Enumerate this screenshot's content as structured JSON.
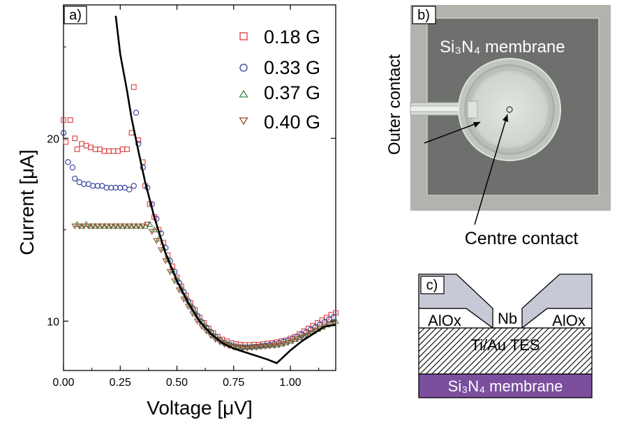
{
  "panel_a": {
    "label": "a)",
    "xlabel": "Voltage [μV]",
    "ylabel": "Current [μA]",
    "legend": [
      {
        "label": "0.18 G",
        "marker": "square",
        "color": "#d93a3a"
      },
      {
        "label": "0.33 G",
        "marker": "circle",
        "color": "#2c3a9a"
      },
      {
        "label": "0.37 G",
        "marker": "triangle-up",
        "color": "#3f8a4f"
      },
      {
        "label": "0.40 G",
        "marker": "triangle-down",
        "color": "#9a4a2c"
      }
    ]
  },
  "chart_data": {
    "type": "scatter",
    "xlim": [
      0.0,
      1.2
    ],
    "ylim": [
      7.3,
      27.3
    ],
    "xticks": [
      {
        "v": 0.0,
        "label": "0.00"
      },
      {
        "v": 0.25,
        "label": "0.25"
      },
      {
        "v": 0.5,
        "label": "0.50"
      },
      {
        "v": 0.75,
        "label": "0.75"
      },
      {
        "v": 1.0,
        "label": "1.00"
      }
    ],
    "yticks": [
      {
        "v": 10,
        "label": "10"
      },
      {
        "v": 20,
        "label": "20"
      }
    ],
    "legend_position": "top-right",
    "series": [
      {
        "name": "0.18 G",
        "marker": "square",
        "color": "#d93a3a",
        "points": [
          [
            0.0,
            21.0
          ],
          [
            0.01,
            19.8
          ],
          [
            0.03,
            21.0
          ],
          [
            0.05,
            20.0
          ],
          [
            0.06,
            19.4
          ],
          [
            0.08,
            19.7
          ],
          [
            0.1,
            19.6
          ],
          [
            0.12,
            19.5
          ],
          [
            0.14,
            19.4
          ],
          [
            0.16,
            19.4
          ],
          [
            0.18,
            19.3
          ],
          [
            0.2,
            19.3
          ],
          [
            0.22,
            19.3
          ],
          [
            0.24,
            19.3
          ],
          [
            0.26,
            19.4
          ],
          [
            0.28,
            19.4
          ],
          [
            0.3,
            20.3
          ],
          [
            0.31,
            22.8
          ],
          [
            0.33,
            19.9
          ],
          [
            0.35,
            18.7
          ],
          [
            0.36,
            17.4
          ],
          [
            0.38,
            16.4
          ],
          [
            0.4,
            15.7
          ],
          [
            0.42,
            15.0
          ],
          [
            0.44,
            14.3
          ],
          [
            0.46,
            13.6
          ],
          [
            0.48,
            13.0
          ],
          [
            0.5,
            12.4
          ],
          [
            0.52,
            11.9
          ],
          [
            0.54,
            11.4
          ],
          [
            0.56,
            11.0
          ],
          [
            0.58,
            10.6
          ],
          [
            0.6,
            10.2
          ],
          [
            0.62,
            9.9
          ],
          [
            0.64,
            9.6
          ],
          [
            0.66,
            9.35
          ],
          [
            0.68,
            9.15
          ],
          [
            0.7,
            9.0
          ],
          [
            0.72,
            8.9
          ],
          [
            0.74,
            8.8
          ],
          [
            0.76,
            8.75
          ],
          [
            0.78,
            8.72
          ],
          [
            0.8,
            8.7
          ],
          [
            0.82,
            8.7
          ],
          [
            0.84,
            8.72
          ],
          [
            0.86,
            8.72
          ],
          [
            0.88,
            8.75
          ],
          [
            0.9,
            8.78
          ],
          [
            0.92,
            8.8
          ],
          [
            0.94,
            8.85
          ],
          [
            0.96,
            8.9
          ],
          [
            0.98,
            8.95
          ],
          [
            1.0,
            9.05
          ],
          [
            1.02,
            9.15
          ],
          [
            1.04,
            9.3
          ],
          [
            1.06,
            9.45
          ],
          [
            1.08,
            9.6
          ],
          [
            1.1,
            9.75
          ],
          [
            1.12,
            9.9
          ],
          [
            1.14,
            10.05
          ],
          [
            1.16,
            10.2
          ],
          [
            1.18,
            10.35
          ],
          [
            1.2,
            10.45
          ]
        ]
      },
      {
        "name": "0.33 G",
        "marker": "circle",
        "color": "#2c3a9a",
        "points": [
          [
            0.0,
            20.3
          ],
          [
            0.02,
            18.7
          ],
          [
            0.04,
            18.4
          ],
          [
            0.05,
            17.8
          ],
          [
            0.07,
            17.6
          ],
          [
            0.09,
            17.5
          ],
          [
            0.11,
            17.5
          ],
          [
            0.13,
            17.4
          ],
          [
            0.15,
            17.4
          ],
          [
            0.17,
            17.4
          ],
          [
            0.19,
            17.3
          ],
          [
            0.21,
            17.3
          ],
          [
            0.23,
            17.3
          ],
          [
            0.25,
            17.3
          ],
          [
            0.27,
            17.3
          ],
          [
            0.29,
            17.2
          ],
          [
            0.31,
            17.4
          ],
          [
            0.32,
            21.4
          ],
          [
            0.33,
            19.7
          ],
          [
            0.35,
            18.4
          ],
          [
            0.37,
            17.3
          ],
          [
            0.39,
            16.4
          ],
          [
            0.41,
            15.6
          ],
          [
            0.43,
            14.8
          ],
          [
            0.45,
            14.0
          ],
          [
            0.47,
            13.3
          ],
          [
            0.49,
            12.7
          ],
          [
            0.51,
            12.1
          ],
          [
            0.53,
            11.6
          ],
          [
            0.55,
            11.1
          ],
          [
            0.57,
            10.7
          ],
          [
            0.59,
            10.3
          ],
          [
            0.61,
            9.95
          ],
          [
            0.63,
            9.65
          ],
          [
            0.65,
            9.4
          ],
          [
            0.67,
            9.15
          ],
          [
            0.69,
            8.95
          ],
          [
            0.71,
            8.8
          ],
          [
            0.73,
            8.7
          ],
          [
            0.75,
            8.62
          ],
          [
            0.77,
            8.58
          ],
          [
            0.79,
            8.56
          ],
          [
            0.81,
            8.56
          ],
          [
            0.83,
            8.58
          ],
          [
            0.85,
            8.6
          ],
          [
            0.87,
            8.63
          ],
          [
            0.89,
            8.66
          ],
          [
            0.91,
            8.7
          ],
          [
            0.93,
            8.75
          ],
          [
            0.95,
            8.8
          ],
          [
            0.97,
            8.88
          ],
          [
            0.99,
            8.95
          ],
          [
            1.01,
            9.05
          ],
          [
            1.03,
            9.15
          ],
          [
            1.05,
            9.28
          ],
          [
            1.07,
            9.4
          ],
          [
            1.09,
            9.55
          ],
          [
            1.11,
            9.68
          ],
          [
            1.13,
            9.82
          ],
          [
            1.15,
            9.95
          ],
          [
            1.17,
            10.1
          ],
          [
            1.19,
            10.22
          ]
        ]
      },
      {
        "name": "0.37 G",
        "marker": "triangle-up",
        "color": "#3f8a4f",
        "points": [
          [
            0.06,
            15.3
          ],
          [
            0.08,
            15.2
          ],
          [
            0.1,
            15.3
          ],
          [
            0.12,
            15.2
          ],
          [
            0.14,
            15.2
          ],
          [
            0.16,
            15.2
          ],
          [
            0.18,
            15.2
          ],
          [
            0.2,
            15.2
          ],
          [
            0.22,
            15.2
          ],
          [
            0.24,
            15.2
          ],
          [
            0.26,
            15.2
          ],
          [
            0.28,
            15.2
          ],
          [
            0.3,
            15.2
          ],
          [
            0.32,
            15.2
          ],
          [
            0.34,
            15.2
          ],
          [
            0.36,
            15.2
          ],
          [
            0.38,
            15.3
          ],
          [
            0.4,
            15.0
          ],
          [
            0.42,
            14.5
          ],
          [
            0.44,
            14.0
          ],
          [
            0.46,
            13.4
          ],
          [
            0.48,
            12.8
          ],
          [
            0.5,
            12.3
          ],
          [
            0.52,
            11.8
          ],
          [
            0.54,
            11.3
          ],
          [
            0.56,
            10.9
          ],
          [
            0.58,
            10.5
          ],
          [
            0.6,
            10.1
          ],
          [
            0.62,
            9.8
          ],
          [
            0.64,
            9.5
          ],
          [
            0.66,
            9.25
          ],
          [
            0.68,
            9.05
          ],
          [
            0.7,
            8.9
          ],
          [
            0.72,
            8.78
          ],
          [
            0.74,
            8.7
          ],
          [
            0.76,
            8.64
          ],
          [
            0.78,
            8.6
          ],
          [
            0.8,
            8.58
          ],
          [
            0.82,
            8.58
          ],
          [
            0.84,
            8.6
          ],
          [
            0.86,
            8.62
          ],
          [
            0.88,
            8.64
          ],
          [
            0.9,
            8.66
          ],
          [
            0.92,
            8.68
          ],
          [
            0.94,
            8.7
          ],
          [
            0.96,
            8.75
          ],
          [
            0.98,
            8.82
          ],
          [
            1.0,
            8.9
          ],
          [
            1.02,
            9.0
          ],
          [
            1.04,
            9.1
          ],
          [
            1.06,
            9.2
          ],
          [
            1.08,
            9.32
          ],
          [
            1.1,
            9.44
          ],
          [
            1.12,
            9.56
          ],
          [
            1.14,
            9.68
          ],
          [
            1.16,
            9.8
          ],
          [
            1.18,
            9.92
          ],
          [
            1.2,
            10.0
          ]
        ]
      },
      {
        "name": "0.40 G",
        "marker": "triangle-down",
        "color": "#9a4a2c",
        "points": [
          [
            0.05,
            15.2
          ],
          [
            0.07,
            15.2
          ],
          [
            0.09,
            15.2
          ],
          [
            0.11,
            15.2
          ],
          [
            0.13,
            15.2
          ],
          [
            0.15,
            15.2
          ],
          [
            0.17,
            15.2
          ],
          [
            0.19,
            15.2
          ],
          [
            0.21,
            15.2
          ],
          [
            0.23,
            15.2
          ],
          [
            0.25,
            15.2
          ],
          [
            0.27,
            15.2
          ],
          [
            0.29,
            15.2
          ],
          [
            0.31,
            15.2
          ],
          [
            0.33,
            15.2
          ],
          [
            0.35,
            15.2
          ],
          [
            0.37,
            15.3
          ],
          [
            0.39,
            14.9
          ],
          [
            0.41,
            14.4
          ],
          [
            0.43,
            13.9
          ],
          [
            0.45,
            13.3
          ],
          [
            0.47,
            12.7
          ],
          [
            0.49,
            12.2
          ],
          [
            0.51,
            11.7
          ],
          [
            0.53,
            11.2
          ],
          [
            0.55,
            10.8
          ],
          [
            0.57,
            10.4
          ],
          [
            0.59,
            10.0
          ],
          [
            0.61,
            9.7
          ],
          [
            0.63,
            9.45
          ],
          [
            0.65,
            9.2
          ],
          [
            0.67,
            9.0
          ],
          [
            0.69,
            8.85
          ],
          [
            0.71,
            8.72
          ],
          [
            0.73,
            8.64
          ],
          [
            0.75,
            8.58
          ],
          [
            0.77,
            8.55
          ],
          [
            0.79,
            8.53
          ],
          [
            0.81,
            8.53
          ],
          [
            0.83,
            8.55
          ],
          [
            0.85,
            8.57
          ],
          [
            0.87,
            8.6
          ],
          [
            0.89,
            8.62
          ],
          [
            0.91,
            8.64
          ],
          [
            0.93,
            8.66
          ],
          [
            0.95,
            8.7
          ],
          [
            0.97,
            8.76
          ],
          [
            0.99,
            8.84
          ],
          [
            1.01,
            8.92
          ],
          [
            1.03,
            9.02
          ],
          [
            1.05,
            9.12
          ],
          [
            1.07,
            9.22
          ],
          [
            1.09,
            9.34
          ],
          [
            1.11,
            9.46
          ],
          [
            1.13,
            9.58
          ],
          [
            1.15,
            9.7
          ],
          [
            1.17,
            9.82
          ],
          [
            1.19,
            9.92
          ]
        ]
      }
    ],
    "line": {
      "color": "#000000",
      "points": [
        [
          0.23,
          26.7
        ],
        [
          0.25,
          24.6
        ],
        [
          0.28,
          22.6
        ],
        [
          0.3,
          21.1
        ],
        [
          0.33,
          19.3
        ],
        [
          0.36,
          17.6
        ],
        [
          0.4,
          15.7
        ],
        [
          0.45,
          13.7
        ],
        [
          0.5,
          12.2
        ],
        [
          0.55,
          11.0
        ],
        [
          0.6,
          10.0
        ],
        [
          0.65,
          9.3
        ],
        [
          0.7,
          8.8
        ],
        [
          0.75,
          8.5
        ],
        [
          0.8,
          8.3
        ],
        [
          0.85,
          8.1
        ],
        [
          0.9,
          7.9
        ],
        [
          0.94,
          7.7
        ],
        [
          0.97,
          8.05
        ],
        [
          1.0,
          8.4
        ],
        [
          1.05,
          8.9
        ],
        [
          1.1,
          9.3
        ],
        [
          1.15,
          9.7
        ],
        [
          1.2,
          9.8
        ]
      ]
    }
  },
  "panel_b": {
    "label": "b)",
    "membrane_text": "Si₃N₄ membrane",
    "outer_contact": "Outer contact",
    "centre_contact": "Centre contact"
  },
  "panel_c": {
    "label": "c)",
    "nb": "Nb",
    "aloxa": "AlOx",
    "aloxb": "AlOx",
    "tes": "Ti/Au TES",
    "membrane": "Si₃N₄ membrane",
    "colors": {
      "nb": "#c8c9d6",
      "tes_hatch": "#000000",
      "membrane": "#7b4f9e"
    }
  }
}
